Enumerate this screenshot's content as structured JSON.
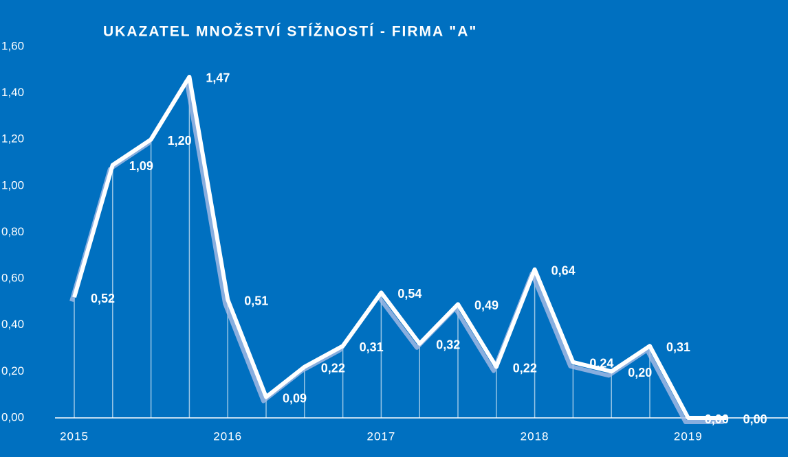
{
  "chart_data": {
    "type": "line",
    "title": "UKAZATEL MNOŽSTVÍ STÍŽNOSTÍ - FIRMA \"A\"",
    "categories": [
      "2015",
      null,
      null,
      null,
      "2016",
      null,
      null,
      null,
      "2017",
      null,
      null,
      null,
      "2018",
      null,
      null,
      null,
      "2019",
      null
    ],
    "series": [
      {
        "name": "Ukazatel",
        "color": "#ffffff",
        "values": [
          0.52,
          1.09,
          1.2,
          1.47,
          0.51,
          0.09,
          0.22,
          0.31,
          0.54,
          0.32,
          0.49,
          0.22,
          0.64,
          0.24,
          0.2,
          0.31,
          0.0,
          0.0
        ],
        "value_labels": [
          "0,52",
          "1,09",
          "1,20",
          "1,47",
          "0,51",
          "0,09",
          "0,22",
          "0,31",
          "0,54",
          "0,32",
          "0,49",
          "0,22",
          "0,64",
          "0,24",
          "0,20",
          "0,31",
          "0,00",
          "0,00"
        ]
      }
    ],
    "ylim": [
      0,
      1.6
    ],
    "yticks": [
      {
        "value": 0,
        "label": "0,00"
      },
      {
        "value": 0.2,
        "label": "0,20"
      },
      {
        "value": 0.4,
        "label": "0,40"
      },
      {
        "value": 0.6,
        "label": "0,60"
      },
      {
        "value": 0.8,
        "label": "0,80"
      },
      {
        "value": 1.0,
        "label": "1,00"
      },
      {
        "value": 1.2,
        "label": "1,20"
      },
      {
        "value": 1.4,
        "label": "1,40"
      },
      {
        "value": 1.6,
        "label": "1,60"
      }
    ],
    "background": "#0070c0"
  }
}
